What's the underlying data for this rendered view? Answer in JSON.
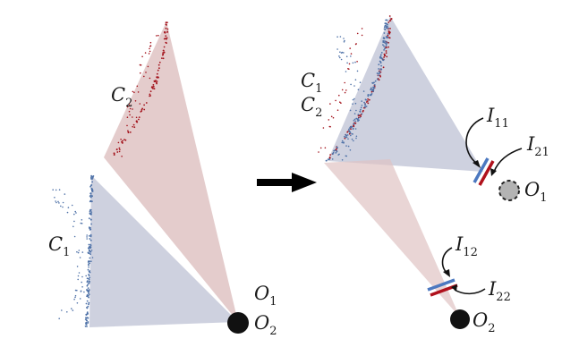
{
  "colors": {
    "red_cone": "#dfc3c3",
    "blue_cone": "#c9ccdc",
    "red_points": "#a3121b",
    "blue_points": "#4f72a8",
    "sensor_red": "#b0111c",
    "sensor_blue": "#4c78c0",
    "ink": "#111111"
  },
  "icons": [
    "arrow-right-icon",
    "camera-sensor-icon",
    "origin-marker-icon"
  ],
  "left_panel": {
    "c2": {
      "base": "C",
      "sub": "2"
    },
    "c1": {
      "base": "C",
      "sub": "1"
    },
    "o1": {
      "base": "O",
      "sub": "1"
    },
    "o2": {
      "base": "O",
      "sub": "2"
    }
  },
  "right_panel": {
    "c1": {
      "base": "C",
      "sub": "1"
    },
    "c2": {
      "base": "C",
      "sub": "2"
    },
    "i11": {
      "base": "I",
      "sub": "11"
    },
    "i21": {
      "base": "I",
      "sub": "21"
    },
    "o1": {
      "base": "O",
      "sub": "1"
    },
    "i12": {
      "base": "I",
      "sub": "12"
    },
    "i22": {
      "base": "I",
      "sub": "22"
    },
    "o2": {
      "base": "O",
      "sub": "2"
    }
  }
}
